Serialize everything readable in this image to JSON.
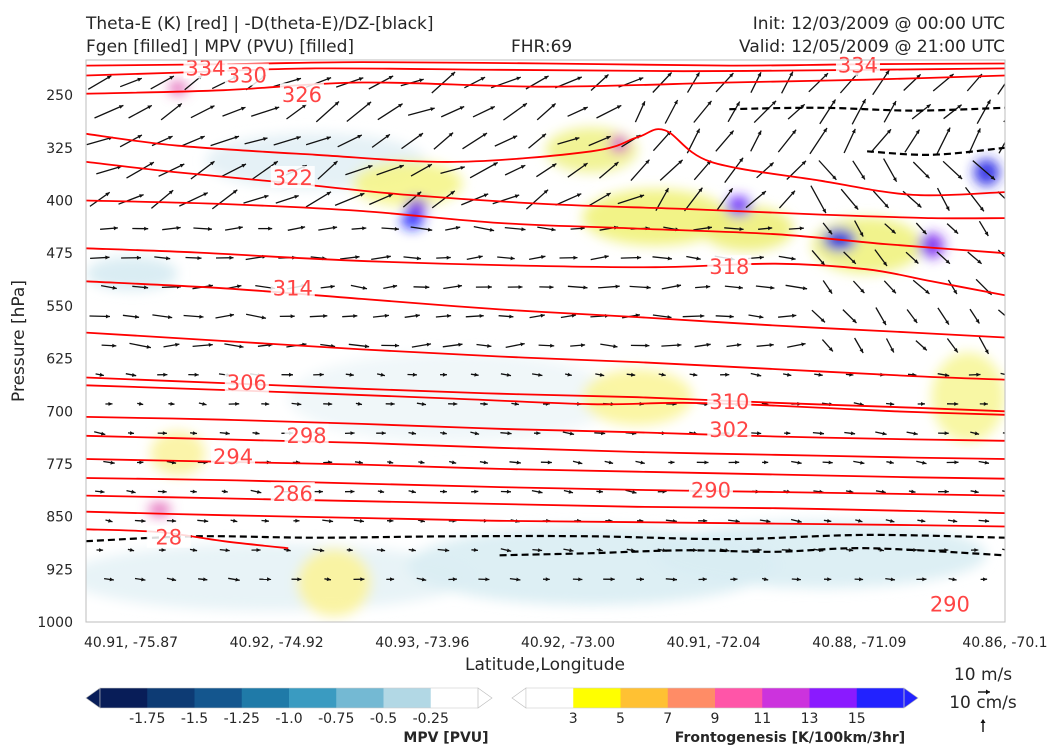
{
  "header": {
    "title_line1": "Theta-E (K) [red] | -D(theta-E)/DZ-[black]",
    "title_line2": "Fgen [filled] | MPV (PVU) [filled]",
    "fhr": "FHR:69",
    "init": "Init: 12/03/2009 @ 00:00 UTC",
    "valid": "Valid: 12/05/2009 @ 21:00 UTC"
  },
  "chart_data": {
    "type": "cross-section",
    "ylabel": "Pressure [hPa]",
    "xlabel": "Latitude,Longitude",
    "ylim": [
      1000,
      200
    ],
    "yticks": [
      "250",
      "325",
      "400",
      "475",
      "550",
      "625",
      "700",
      "775",
      "850",
      "925",
      "1000"
    ],
    "ytick_values": [
      250,
      325,
      400,
      475,
      550,
      625,
      700,
      775,
      850,
      925,
      1000
    ],
    "xticks": [
      "40.91, -75.87",
      "40.92, -74.92",
      "40.93, -73.96",
      "40.92, -73.00",
      "40.91, -72.04",
      "40.88, -71.09",
      "40.86, -70.1"
    ],
    "theta_e_contours": [
      {
        "label": "334",
        "points": [
          [
            0,
            208
          ],
          [
            0.15,
            206
          ],
          [
            0.3,
            203
          ],
          [
            0.5,
            205
          ],
          [
            0.7,
            208
          ],
          [
            0.85,
            206
          ],
          [
            1,
            205
          ]
        ]
      },
      {
        "label": "330",
        "points": [
          [
            0,
            222
          ],
          [
            0.1,
            218
          ],
          [
            0.25,
            212
          ],
          [
            0.45,
            214
          ],
          [
            0.65,
            216
          ],
          [
            0.85,
            214
          ],
          [
            1,
            212
          ]
        ]
      },
      {
        "label": "326",
        "points": [
          [
            0,
            248
          ],
          [
            0.15,
            243
          ],
          [
            0.3,
            232
          ],
          [
            0.5,
            238
          ],
          [
            0.7,
            232
          ],
          [
            0.85,
            228
          ],
          [
            1,
            222
          ]
        ]
      },
      {
        "label": "",
        "points": [
          [
            0,
            305
          ],
          [
            0.1,
            322
          ],
          [
            0.25,
            335
          ],
          [
            0.4,
            345
          ],
          [
            0.55,
            330
          ],
          [
            0.6,
            310
          ],
          [
            0.63,
            300
          ],
          [
            0.68,
            345
          ],
          [
            0.8,
            372
          ],
          [
            0.9,
            392
          ],
          [
            1,
            388
          ]
        ]
      },
      {
        "label": "322",
        "points": [
          [
            0,
            345
          ],
          [
            0.1,
            360
          ],
          [
            0.22,
            375
          ],
          [
            0.35,
            392
          ],
          [
            0.5,
            405
          ],
          [
            0.65,
            412
          ],
          [
            0.8,
            420
          ],
          [
            0.92,
            425
          ],
          [
            1,
            425
          ]
        ]
      },
      {
        "label": "",
        "points": [
          [
            0,
            400
          ],
          [
            0.15,
            405
          ],
          [
            0.3,
            415
          ],
          [
            0.45,
            432
          ],
          [
            0.6,
            440
          ],
          [
            0.75,
            448
          ],
          [
            0.87,
            462
          ],
          [
            1,
            475
          ]
        ]
      },
      {
        "label": "318",
        "points": [
          [
            0,
            468
          ],
          [
            0.12,
            474
          ],
          [
            0.28,
            485
          ],
          [
            0.45,
            492
          ],
          [
            0.62,
            495
          ],
          [
            0.75,
            490
          ],
          [
            0.85,
            498
          ],
          [
            0.92,
            515
          ],
          [
            1,
            535
          ]
        ]
      },
      {
        "label": "314",
        "points": [
          [
            0,
            515
          ],
          [
            0.15,
            525
          ],
          [
            0.3,
            540
          ],
          [
            0.45,
            555
          ],
          [
            0.6,
            566
          ],
          [
            0.75,
            578
          ],
          [
            0.9,
            588
          ],
          [
            1,
            595
          ]
        ]
      },
      {
        "label": "",
        "points": [
          [
            0,
            588
          ],
          [
            0.15,
            600
          ],
          [
            0.3,
            612
          ],
          [
            0.45,
            622
          ],
          [
            0.6,
            630
          ],
          [
            0.75,
            640
          ],
          [
            0.9,
            650
          ],
          [
            1,
            655
          ]
        ]
      },
      {
        "label": "306",
        "points": [
          [
            0,
            652
          ],
          [
            0.15,
            660
          ],
          [
            0.3,
            668
          ],
          [
            0.45,
            675
          ],
          [
            0.6,
            680
          ],
          [
            0.75,
            688
          ],
          [
            0.9,
            695
          ],
          [
            1,
            700
          ]
        ]
      },
      {
        "label": "310",
        "points": [
          [
            0,
            663
          ],
          [
            0.2,
            672
          ],
          [
            0.4,
            682
          ],
          [
            0.55,
            690
          ],
          [
            0.65,
            688
          ],
          [
            0.75,
            692
          ],
          [
            0.88,
            700
          ],
          [
            1,
            705
          ]
        ]
      },
      {
        "label": "302",
        "points": [
          [
            0,
            708
          ],
          [
            0.15,
            712
          ],
          [
            0.3,
            718
          ],
          [
            0.45,
            725
          ],
          [
            0.6,
            730
          ],
          [
            0.75,
            736
          ],
          [
            0.9,
            740
          ],
          [
            1,
            742
          ]
        ]
      },
      {
        "label": "298",
        "points": [
          [
            0,
            735
          ],
          [
            0.15,
            740
          ],
          [
            0.3,
            745
          ],
          [
            0.45,
            752
          ],
          [
            0.6,
            758
          ],
          [
            0.75,
            762
          ],
          [
            0.9,
            766
          ],
          [
            1,
            768
          ]
        ]
      },
      {
        "label": "294",
        "points": [
          [
            0,
            768
          ],
          [
            0.15,
            772
          ],
          [
            0.3,
            776
          ],
          [
            0.45,
            782
          ],
          [
            0.6,
            786
          ],
          [
            0.75,
            790
          ],
          [
            0.9,
            794
          ],
          [
            1,
            796
          ]
        ]
      },
      {
        "label": "",
        "points": [
          [
            0,
            795
          ],
          [
            0.15,
            798
          ],
          [
            0.3,
            803
          ],
          [
            0.45,
            808
          ],
          [
            0.6,
            812
          ],
          [
            0.75,
            815
          ],
          [
            0.9,
            818
          ],
          [
            1,
            820
          ]
        ]
      },
      {
        "label": "290",
        "points": [
          [
            0,
            820
          ],
          [
            0.15,
            824
          ],
          [
            0.3,
            828
          ],
          [
            0.45,
            832
          ],
          [
            0.6,
            836
          ],
          [
            0.75,
            838
          ],
          [
            0.9,
            842
          ],
          [
            1,
            845
          ]
        ]
      },
      {
        "label": "286",
        "points": [
          [
            0,
            843
          ],
          [
            0.15,
            848
          ],
          [
            0.3,
            852
          ],
          [
            0.45,
            856
          ],
          [
            0.6,
            858
          ],
          [
            0.75,
            860
          ],
          [
            0.9,
            862
          ],
          [
            1,
            864
          ]
        ]
      },
      {
        "label": "282",
        "points": [
          [
            0,
            868
          ],
          [
            0.08,
            872
          ],
          [
            0.15,
            885
          ],
          [
            0.22,
            895
          ]
        ]
      }
    ],
    "contour_labels": [
      {
        "text": "334",
        "x": 0.13,
        "p": 212
      },
      {
        "text": "330",
        "x": 0.175,
        "p": 222
      },
      {
        "text": "326",
        "x": 0.235,
        "p": 250
      },
      {
        "text": "334",
        "x": 0.84,
        "p": 208
      },
      {
        "text": "322",
        "x": 0.225,
        "p": 368
      },
      {
        "text": "318",
        "x": 0.7,
        "p": 495
      },
      {
        "text": "314",
        "x": 0.225,
        "p": 525
      },
      {
        "text": "306",
        "x": 0.175,
        "p": 660
      },
      {
        "text": "310",
        "x": 0.7,
        "p": 687
      },
      {
        "text": "298",
        "x": 0.24,
        "p": 735
      },
      {
        "text": "302",
        "x": 0.7,
        "p": 727
      },
      {
        "text": "294",
        "x": 0.16,
        "p": 765
      },
      {
        "text": "286",
        "x": 0.225,
        "p": 818
      },
      {
        "text": "290",
        "x": 0.68,
        "p": 813
      },
      {
        "text": "28",
        "x": 0.09,
        "p": 880
      },
      {
        "text": "290",
        "x": 0.94,
        "p": 975
      }
    ],
    "mpv_colorbar": {
      "label": "MPV [PVU]",
      "ticks": [
        "-1.75",
        "-1.5",
        "-1.25",
        "-1.0",
        "-0.75",
        "-0.5",
        "-0.25"
      ],
      "colors": [
        "#081d58",
        "#0d3b74",
        "#14568e",
        "#1f7aa8",
        "#3a9bc1",
        "#74b9d3",
        "#b2d8e5",
        "#ffffff"
      ]
    },
    "fgen_colorbar": {
      "label": "Frontogenesis [K/100km/3hr]",
      "ticks": [
        "3",
        "5",
        "7",
        "9",
        "11",
        "13",
        "15"
      ],
      "colors": [
        "#ffffff",
        "#ffff00",
        "#ffc133",
        "#ff8c66",
        "#ff55a8",
        "#cc33dd",
        "#8a1aff",
        "#2222ff"
      ]
    },
    "wind_key": {
      "horizontal": "10 m/s",
      "vertical": "10 cm/s"
    },
    "colors": {
      "theta_e": "#ff0000",
      "label": "#ff4444",
      "dthetae": "#000000",
      "mpv_outline": "#a7b4cf"
    }
  }
}
